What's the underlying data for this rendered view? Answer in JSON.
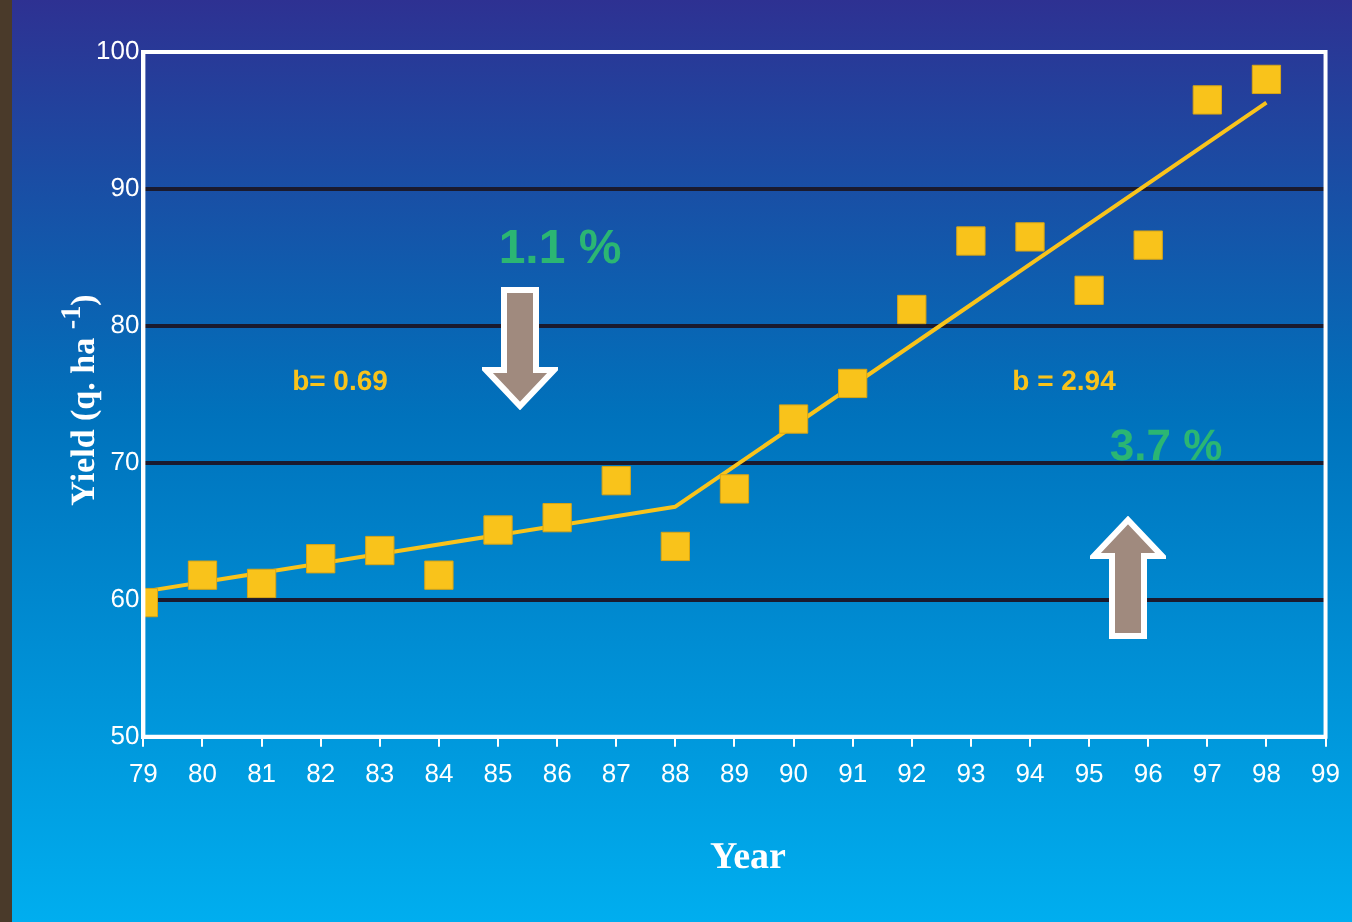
{
  "chart_data": {
    "type": "scatter",
    "xlabel": "Year",
    "ylabel": "Yield (q. ha $^{-1}$)",
    "x": [
      79,
      80,
      81,
      82,
      83,
      84,
      85,
      86,
      87,
      88,
      89,
      90,
      91,
      92,
      93,
      94,
      95,
      96,
      97,
      98
    ],
    "series": [
      {
        "color": "#f9c31b",
        "marker": "square",
        "values": [
          59.8,
          61.8,
          61.2,
          63.0,
          63.6,
          61.8,
          65.1,
          66.0,
          68.7,
          63.9,
          68.1,
          73.2,
          75.8,
          81.2,
          86.2,
          86.5,
          82.6,
          85.9,
          96.5,
          98.0
        ]
      },
      {
        "type": "line",
        "color": "#f9c31b",
        "marker": "none",
        "line_style": "solid",
        "x": [
          79,
          88,
          98
        ],
        "values": [
          60.6,
          66.8,
          96.3
        ]
      }
    ],
    "xlim": [
      79,
      99
    ],
    "xticks": [
      79,
      80,
      81,
      82,
      83,
      84,
      85,
      86,
      87,
      88,
      89,
      90,
      91,
      92,
      93,
      94,
      95,
      96,
      97,
      98,
      99
    ],
    "ylim": [
      50,
      100
    ],
    "yticks": [
      50,
      60,
      70,
      80,
      90,
      100
    ],
    "grid": "y",
    "legend": false,
    "annotations": [
      "1.1 %",
      "b= 0.69",
      "b = 2.94",
      "3.7 %"
    ]
  }
}
